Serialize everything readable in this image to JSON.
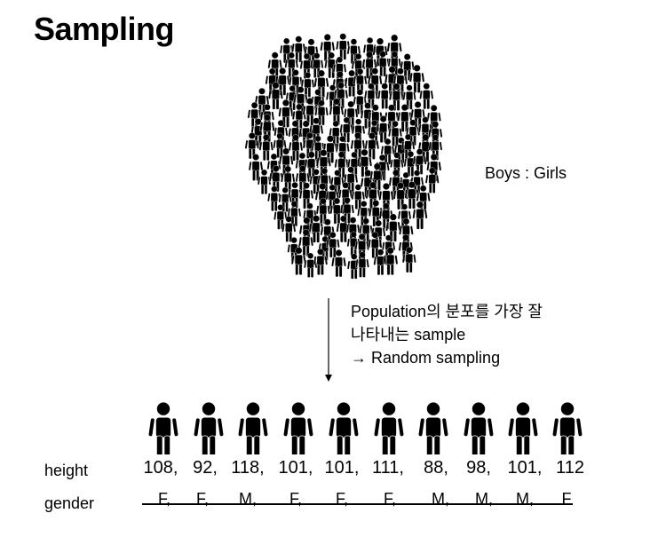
{
  "title": "Sampling",
  "ratio_label": "Boys : Girls",
  "description": {
    "line1": "Population의 분포를 가장 잘",
    "line2": "나타내는 sample",
    "line3": "→ Random sampling"
  },
  "labels": {
    "height": "height",
    "gender": "gender"
  },
  "samples": {
    "heights": [
      "108,",
      "92,",
      "118,",
      "101,",
      "101,",
      "111,",
      "88,",
      "98,",
      "101,",
      "112"
    ],
    "genders": [
      "F,",
      "F,",
      "M,",
      "F,",
      "F,",
      "F,",
      "M,",
      "M,",
      "M,",
      "F"
    ]
  },
  "icons": {
    "person": "person-icon",
    "crowd": "crowd-icon"
  }
}
